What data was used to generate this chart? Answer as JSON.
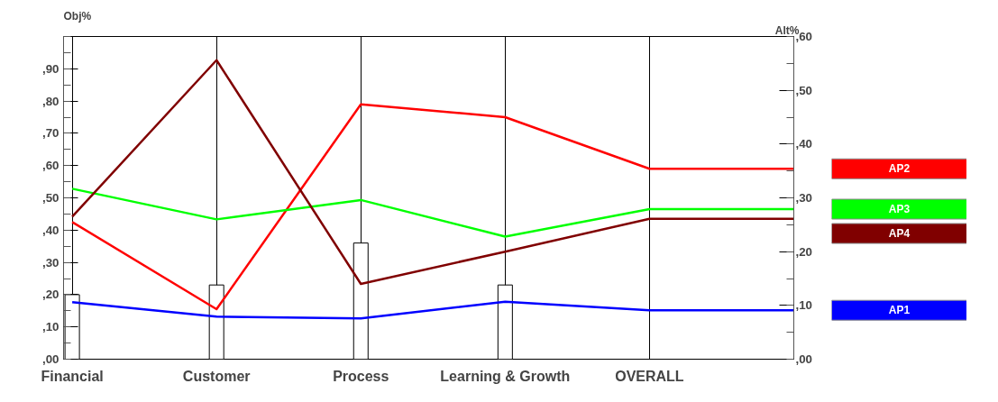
{
  "chart_data": {
    "type": "line",
    "categories": [
      "Financial",
      "Customer",
      "Process",
      "Learning & Growth",
      "OVERALL",
      null
    ],
    "series": [
      {
        "type": "bar",
        "color": "#ffffff",
        "values": [
          20,
          23,
          36,
          23,
          null,
          null
        ]
      },
      {
        "name": "AP2",
        "color": "#ff0000",
        "axis": "y2",
        "values": [
          25.5,
          9.3,
          47.4,
          45,
          35.4,
          35.4
        ]
      },
      {
        "name": "AP3",
        "color": "#00ff00",
        "axis": "y2",
        "values": [
          31.7,
          26,
          29.6,
          22.8,
          27.9,
          27.9
        ]
      },
      {
        "name": "AP4",
        "color": "#800000",
        "axis": "y2",
        "values": [
          26.5,
          55.6,
          14,
          20,
          26.1,
          26.1
        ]
      },
      {
        "name": "AP1",
        "color": "#0000ff",
        "axis": "y2",
        "values": [
          10.6,
          7.9,
          7.6,
          10.7,
          9.1,
          9.1
        ]
      }
    ],
    "ylabel": "Obj%",
    "y2label": "Alt%",
    "ylim": [
      0,
      100
    ],
    "yticks": [
      {
        "value": 0,
        "label": ",00"
      },
      {
        "value": 10,
        "label": ",10"
      },
      {
        "value": 20,
        "label": ",20"
      },
      {
        "value": 30,
        "label": ",30"
      },
      {
        "value": 40,
        "label": ",40"
      },
      {
        "value": 50,
        "label": ",50"
      },
      {
        "value": 60,
        "label": ",60"
      },
      {
        "value": 70,
        "label": ",70"
      },
      {
        "value": 80,
        "label": ",80"
      },
      {
        "value": 90,
        "label": ",90"
      }
    ],
    "y2lim": [
      0,
      60
    ],
    "y2ticks": [
      {
        "value": 0,
        "label": ",00"
      },
      {
        "value": 10,
        "label": ",10"
      },
      {
        "value": 20,
        "label": ",20"
      },
      {
        "value": 30,
        "label": ",30"
      },
      {
        "value": 40,
        "label": ",40"
      },
      {
        "value": 50,
        "label": ",50"
      },
      {
        "value": 60,
        "label": ",60"
      }
    ],
    "grid": "x",
    "legend": "right"
  }
}
